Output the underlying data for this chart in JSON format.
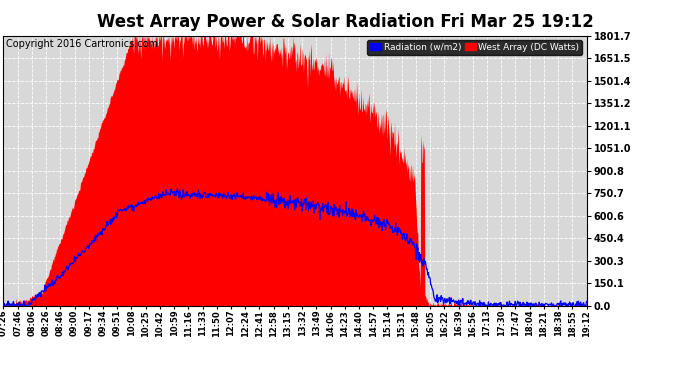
{
  "title": "West Array Power & Solar Radiation Fri Mar 25 19:12",
  "copyright": "Copyright 2016 Cartronics.com",
  "legend_labels": [
    "Radiation (w/m2)",
    "West Array (DC Watts)"
  ],
  "legend_colors": [
    "#0000ff",
    "#ff0000"
  ],
  "bg_color": "#ffffff",
  "plot_bg_color": "#d8d8d8",
  "grid_color": "#ffffff",
  "y_ticks": [
    0.0,
    150.1,
    300.3,
    450.4,
    600.6,
    750.7,
    900.8,
    1051.0,
    1201.1,
    1351.2,
    1501.4,
    1651.5,
    1801.7
  ],
  "y_max": 1801.7,
  "x_tick_labels": [
    "07:26",
    "07:46",
    "08:06",
    "08:26",
    "08:46",
    "09:00",
    "09:17",
    "09:34",
    "09:51",
    "10:08",
    "10:25",
    "10:42",
    "10:59",
    "11:16",
    "11:33",
    "11:50",
    "12:07",
    "12:24",
    "12:41",
    "12:58",
    "13:15",
    "13:32",
    "13:49",
    "14:06",
    "14:23",
    "14:40",
    "14:57",
    "15:14",
    "15:31",
    "15:48",
    "16:05",
    "16:22",
    "16:39",
    "16:56",
    "17:13",
    "17:30",
    "17:47",
    "18:04",
    "18:21",
    "18:38",
    "18:55",
    "19:12"
  ],
  "title_fontsize": 12,
  "copyright_fontsize": 7,
  "tick_fontsize": 6,
  "y_label_fontsize": 7
}
